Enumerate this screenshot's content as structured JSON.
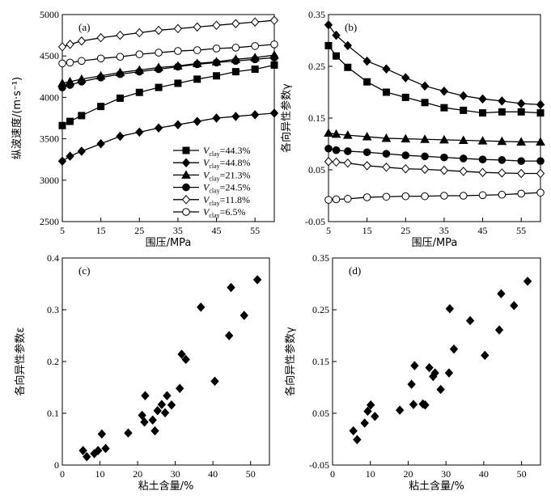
{
  "chart_data": [
    {
      "id": "a",
      "panel_label": "(a)",
      "type": "line",
      "xlabel": "围压/MPa",
      "ylabel": "纵波速度/(m·s⁻¹)",
      "xlim": [
        5,
        60
      ],
      "ylim": [
        2500,
        5000
      ],
      "xticks": [
        5,
        15,
        25,
        35,
        45,
        55
      ],
      "yticks": [
        2500,
        3000,
        3500,
        4000,
        4500,
        5000
      ],
      "x": [
        5,
        7,
        10,
        15,
        20,
        25,
        30,
        35,
        40,
        45,
        50,
        55,
        60
      ],
      "legend_position": "bottom-right",
      "series": [
        {
          "name": "V",
          "sub": "clay",
          "pct": "=44.3%",
          "marker": "square",
          "values": [
            3660,
            3710,
            3780,
            3890,
            3990,
            4060,
            4120,
            4170,
            4220,
            4260,
            4310,
            4340,
            4390
          ]
        },
        {
          "name": "V",
          "sub": "clay",
          "pct": "=44.8%",
          "marker": "diamond",
          "values": [
            3230,
            3290,
            3350,
            3440,
            3530,
            3580,
            3630,
            3670,
            3710,
            3750,
            3770,
            3790,
            3810
          ]
        },
        {
          "name": "V",
          "sub": "clay",
          "pct": "=21.3%",
          "marker": "triangle",
          "values": [
            4170,
            4190,
            4220,
            4260,
            4300,
            4330,
            4360,
            4380,
            4410,
            4430,
            4460,
            4480,
            4510
          ]
        },
        {
          "name": "V",
          "sub": "clay",
          "pct": "=24.5%",
          "marker": "circle",
          "values": [
            4120,
            4150,
            4190,
            4240,
            4280,
            4310,
            4340,
            4370,
            4400,
            4420,
            4440,
            4460,
            4480
          ]
        },
        {
          "name": "V",
          "sub": "clay",
          "pct": "=11.8%",
          "marker": "diamond-open",
          "values": [
            4610,
            4640,
            4680,
            4720,
            4750,
            4780,
            4810,
            4830,
            4850,
            4870,
            4890,
            4910,
            4930
          ]
        },
        {
          "name": "V",
          "sub": "clay",
          "pct": "=6.5%",
          "marker": "circle-open",
          "values": [
            4410,
            4420,
            4440,
            4470,
            4490,
            4520,
            4540,
            4560,
            4570,
            4590,
            4600,
            4620,
            4640
          ]
        }
      ]
    },
    {
      "id": "b",
      "panel_label": "(b)",
      "type": "line",
      "xlabel": "围压/MPa",
      "ylabel": "各向异性参数γ",
      "xlim": [
        5,
        60
      ],
      "ylim": [
        -0.05,
        0.35
      ],
      "xticks": [
        5,
        15,
        25,
        35,
        45,
        55
      ],
      "yticks": [
        -0.05,
        0.05,
        0.15,
        0.25,
        0.35
      ],
      "ytick_labels": [
        "-0.05",
        "0.05",
        "0.15",
        "0.25",
        "0.35"
      ],
      "x": [
        5,
        7,
        10,
        15,
        20,
        25,
        30,
        35,
        40,
        45,
        50,
        55,
        60
      ],
      "series": [
        {
          "name": "Vclay=44.8%",
          "marker": "diamond",
          "values": [
            0.33,
            0.31,
            0.29,
            0.26,
            0.245,
            0.228,
            0.212,
            0.202,
            0.193,
            0.187,
            0.183,
            0.178,
            0.176
          ]
        },
        {
          "name": "Vclay=44.3%",
          "marker": "square",
          "values": [
            0.29,
            0.27,
            0.248,
            0.22,
            0.2,
            0.19,
            0.18,
            0.17,
            0.165,
            0.16,
            0.162,
            0.162,
            0.16
          ]
        },
        {
          "name": "Vclay=21.3%",
          "marker": "triangle",
          "values": [
            0.121,
            0.119,
            0.117,
            0.114,
            0.111,
            0.11,
            0.109,
            0.108,
            0.107,
            0.106,
            0.105,
            0.104,
            0.104
          ]
        },
        {
          "name": "Vclay=24.5%",
          "marker": "circle",
          "values": [
            0.091,
            0.088,
            0.086,
            0.084,
            0.081,
            0.078,
            0.076,
            0.074,
            0.072,
            0.07,
            0.069,
            0.067,
            0.067
          ]
        },
        {
          "name": "Vclay=11.8%",
          "marker": "diamond-open",
          "values": [
            0.066,
            0.065,
            0.063,
            0.058,
            0.055,
            0.052,
            0.051,
            0.049,
            0.047,
            0.045,
            0.044,
            0.043,
            0.043
          ]
        },
        {
          "name": "Vclay=6.5%",
          "marker": "circle-open",
          "values": [
            -0.008,
            -0.007,
            -0.006,
            -0.003,
            -0.002,
            -0.001,
            -0.001,
            0.0,
            0.0,
            0.001,
            0.002,
            0.004,
            0.006
          ]
        }
      ]
    },
    {
      "id": "c",
      "panel_label": "(c)",
      "type": "scatter",
      "xlabel": "粘土含量/%",
      "ylabel": "各向异性参数ε",
      "xlim": [
        0,
        55
      ],
      "ylim": [
        0,
        0.4
      ],
      "xticks": [
        0,
        10,
        20,
        30,
        40,
        50
      ],
      "yticks": [
        0,
        0.1,
        0.2,
        0.3,
        0.4
      ],
      "ytick_labels": [
        "0",
        "0.1",
        "0.2",
        "0.3",
        "0.4"
      ],
      "marker": "diamond",
      "points": [
        [
          5.5,
          0.028
        ],
        [
          6.5,
          0.016
        ],
        [
          8.5,
          0.022
        ],
        [
          9.5,
          0.028
        ],
        [
          10.5,
          0.06
        ],
        [
          11.5,
          0.032
        ],
        [
          17.5,
          0.062
        ],
        [
          21.2,
          0.096
        ],
        [
          21.8,
          0.083
        ],
        [
          22.0,
          0.134
        ],
        [
          24.0,
          0.087
        ],
        [
          24.6,
          0.066
        ],
        [
          25.3,
          0.105
        ],
        [
          26.4,
          0.117
        ],
        [
          27.3,
          0.101
        ],
        [
          27.8,
          0.134
        ],
        [
          29.0,
          0.116
        ],
        [
          31.2,
          0.148
        ],
        [
          31.7,
          0.214
        ],
        [
          32.8,
          0.204
        ],
        [
          36.8,
          0.305
        ],
        [
          40.5,
          0.162
        ],
        [
          44.3,
          0.25
        ],
        [
          44.8,
          0.343
        ],
        [
          48.3,
          0.289
        ],
        [
          51.8,
          0.358
        ]
      ]
    },
    {
      "id": "d",
      "panel_label": "(d)",
      "type": "scatter",
      "xlabel": "粘土含量/%",
      "ylabel": "各向异性参数γ",
      "xlim": [
        0,
        55
      ],
      "ylim": [
        -0.05,
        0.35
      ],
      "xticks": [
        0,
        10,
        20,
        30,
        40,
        50
      ],
      "yticks": [
        -0.05,
        0.05,
        0.15,
        0.25,
        0.35
      ],
      "ytick_labels": [
        "-0.05",
        "0.05",
        "0.15",
        "0.25",
        "0.35"
      ],
      "marker": "diamond",
      "points": [
        [
          5.5,
          0.016
        ],
        [
          6.5,
          -0.001
        ],
        [
          8.5,
          0.031
        ],
        [
          9.3,
          0.054
        ],
        [
          10.1,
          0.066
        ],
        [
          11.2,
          0.044
        ],
        [
          17.8,
          0.056
        ],
        [
          20.9,
          0.106
        ],
        [
          21.4,
          0.067
        ],
        [
          21.7,
          0.142
        ],
        [
          23.9,
          0.068
        ],
        [
          24.5,
          0.066
        ],
        [
          25.6,
          0.138
        ],
        [
          26.6,
          0.121
        ],
        [
          27.1,
          0.128
        ],
        [
          28.6,
          0.096
        ],
        [
          30.8,
          0.128
        ],
        [
          31.0,
          0.252
        ],
        [
          32.1,
          0.174
        ],
        [
          36.4,
          0.229
        ],
        [
          40.3,
          0.162
        ],
        [
          44.1,
          0.211
        ],
        [
          44.6,
          0.281
        ],
        [
          48.0,
          0.258
        ],
        [
          51.6,
          0.305
        ]
      ]
    }
  ]
}
